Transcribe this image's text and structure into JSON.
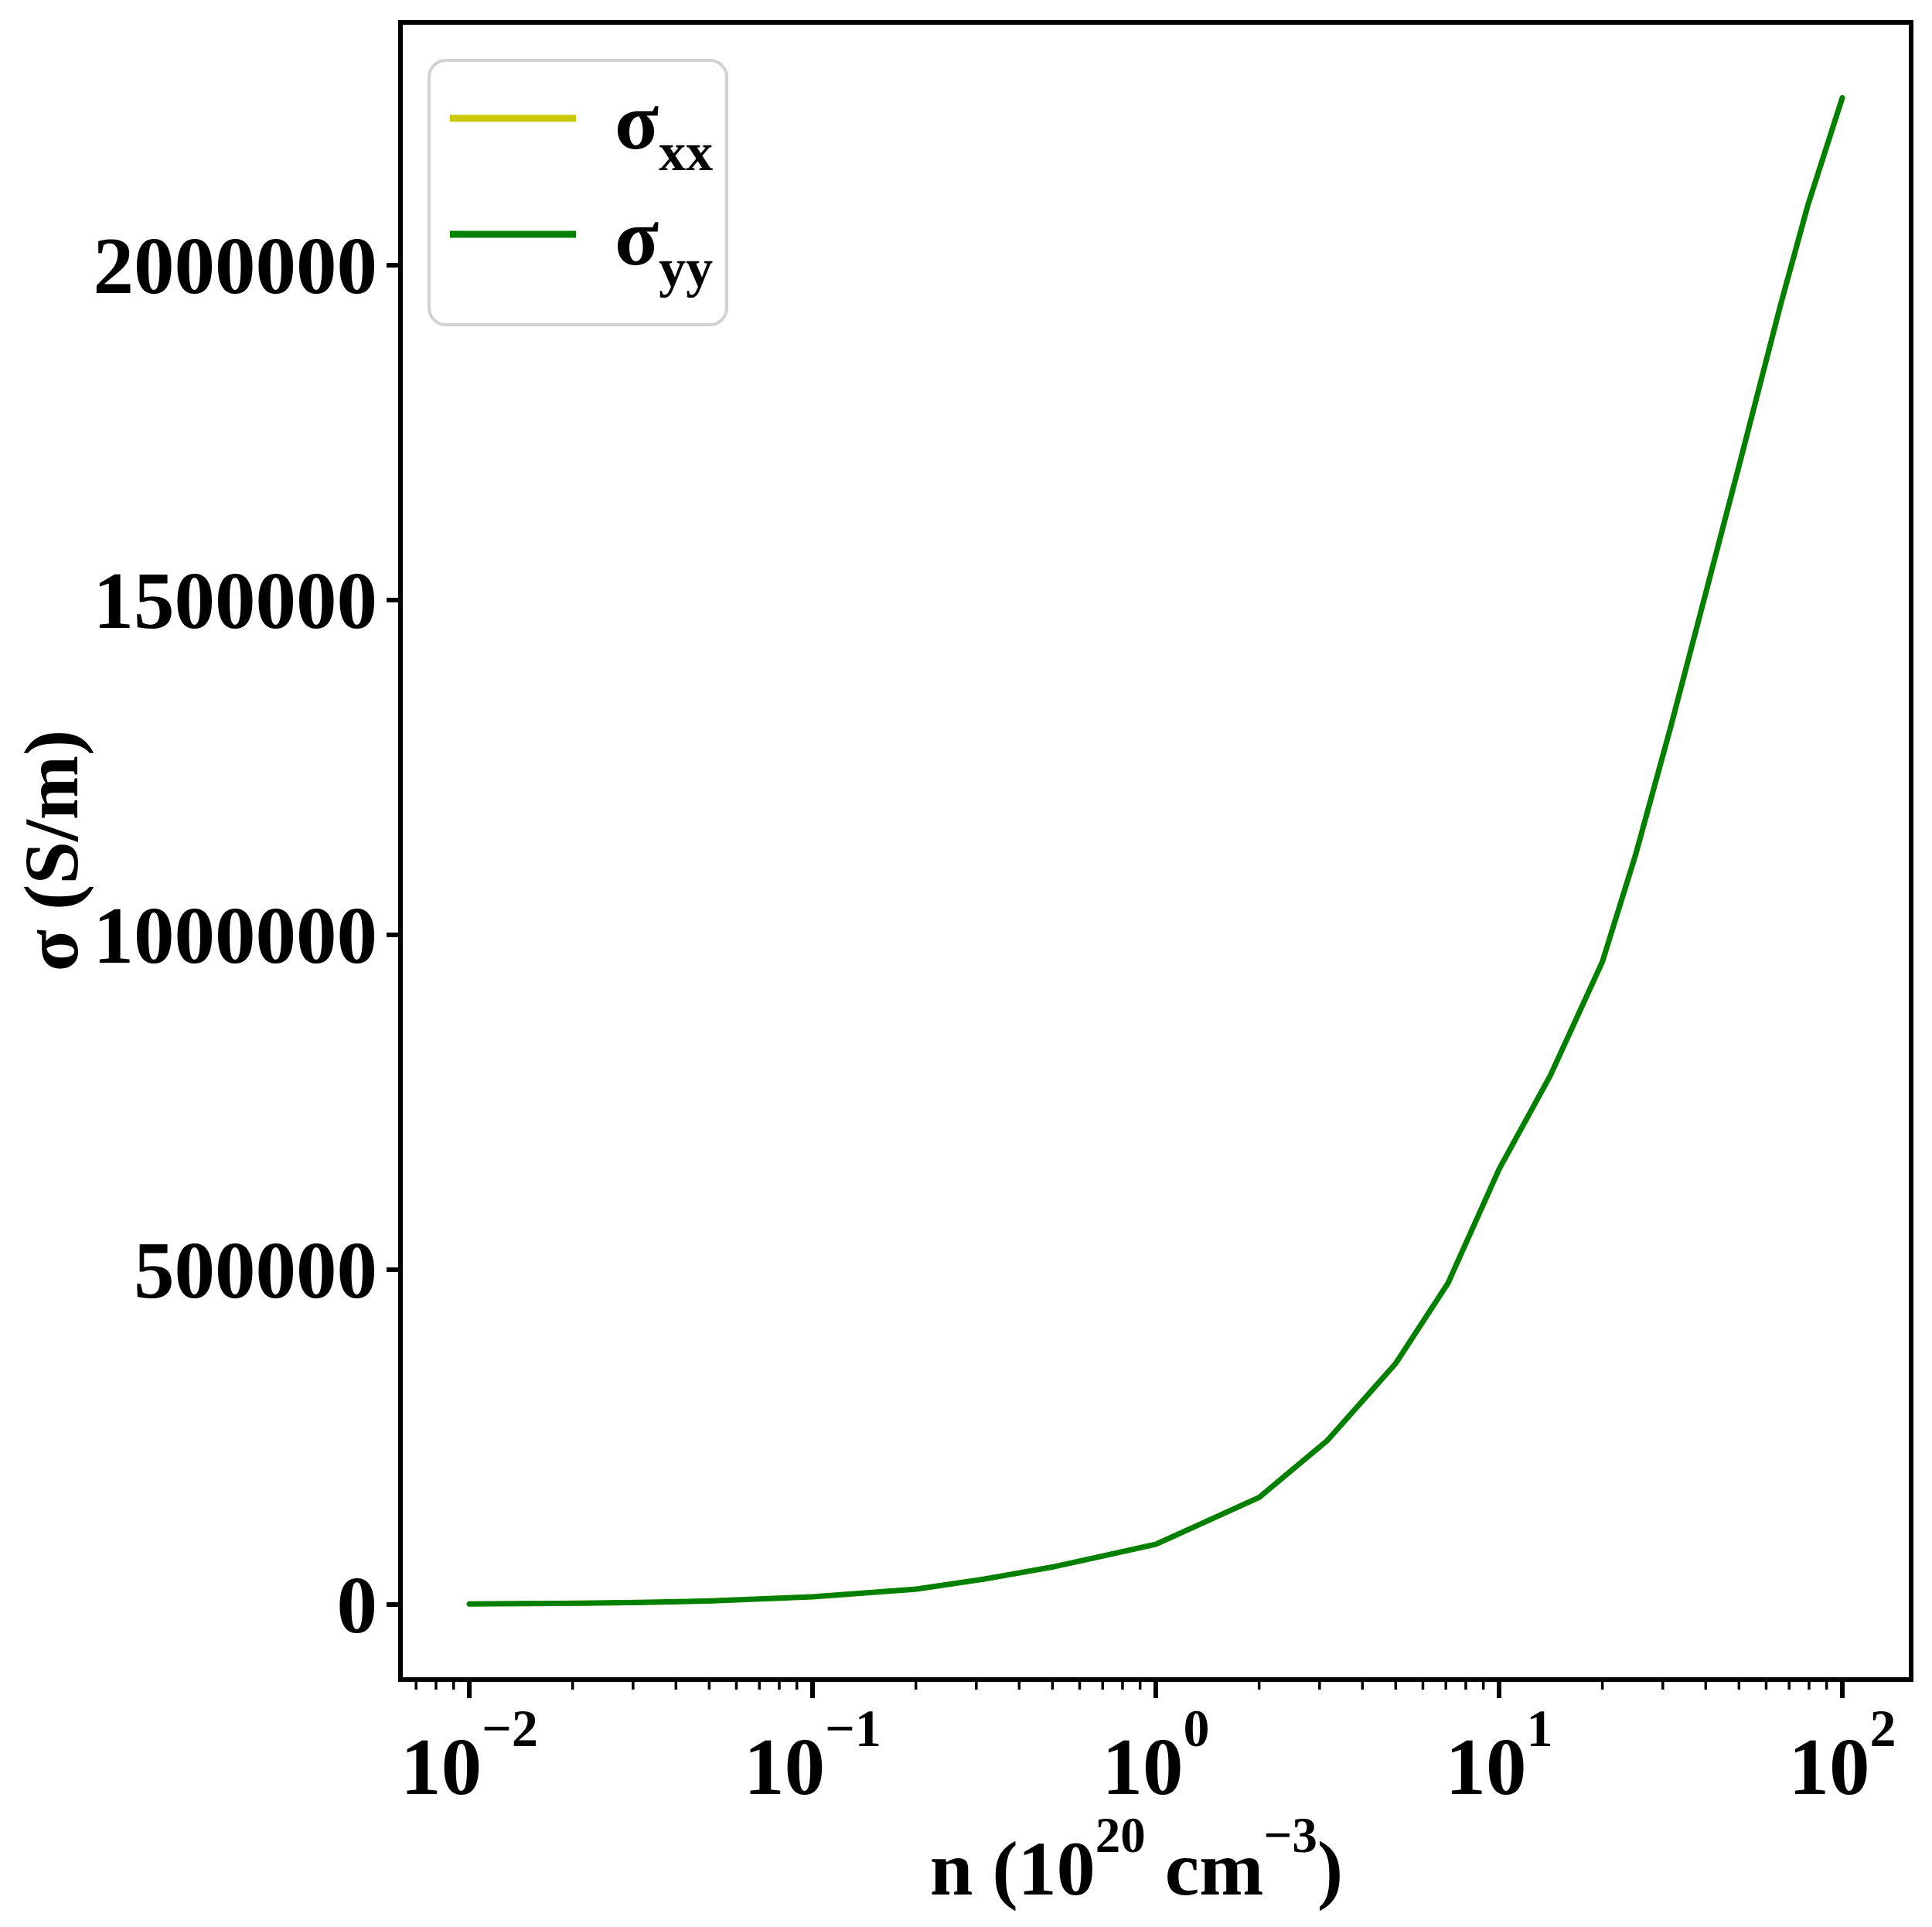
{
  "figure": {
    "background": "#ffffff",
    "ylabel": "σ (S/m)",
    "xlabel_parts": {
      "p1": "n (10",
      "sup1": "20",
      "p2": " cm",
      "sup2": "−3",
      "p3": ")"
    }
  },
  "axes": {
    "x_scale": "log",
    "y_scale": "linear",
    "spine_color": "#000000",
    "xticks": [
      {
        "value": 0.01,
        "base": "10",
        "exp": "−2"
      },
      {
        "value": 0.1,
        "base": "10",
        "exp": "−1"
      },
      {
        "value": 1,
        "base": "10",
        "exp": "0"
      },
      {
        "value": 10,
        "base": "10",
        "exp": "1"
      },
      {
        "value": 100,
        "base": "10",
        "exp": "2"
      }
    ],
    "yticks": [
      {
        "value": 0,
        "label": "0"
      },
      {
        "value": 500000,
        "label": "500000"
      },
      {
        "value": 1000000,
        "label": "1000000"
      },
      {
        "value": 1500000,
        "label": "1500000"
      },
      {
        "value": 2000000,
        "label": "2000000"
      }
    ]
  },
  "legend": {
    "position": "upper left",
    "border_color": "#d2d2d2",
    "entries": [
      {
        "base": "σ",
        "sub": "xx",
        "color": "#c9c900"
      },
      {
        "base": "σ",
        "sub": "yy",
        "color": "#008000"
      }
    ]
  },
  "chart_data": {
    "type": "line",
    "title": "",
    "xlabel": "n (10^20 cm^-3)",
    "ylabel": "σ (S/m)",
    "x_scale": "log",
    "xlim": [
      0.0063,
      158
    ],
    "ylim": [
      -112000,
      2362000
    ],
    "grid": false,
    "legend_position": "upper left",
    "note": "σxx and σyy curves coincide exactly; the green σyy curve is drawn on top of the yellow σxx curve.",
    "series": [
      {
        "name": "σxx",
        "color": "#c9c900",
        "points": [
          [
            0.01,
            900
          ],
          [
            0.02,
            1900
          ],
          [
            0.0316,
            3200
          ],
          [
            0.05,
            5300
          ],
          [
            0.1,
            11500
          ],
          [
            0.2,
            23000
          ],
          [
            0.316,
            38000
          ],
          [
            0.5,
            56000
          ],
          [
            1,
            90000
          ],
          [
            2,
            160000
          ],
          [
            3.16,
            245000
          ],
          [
            5,
            360000
          ],
          [
            7.1,
            480000
          ],
          [
            10,
            650000
          ],
          [
            14.1,
            790000
          ],
          [
            20,
            960000
          ],
          [
            25,
            1120000
          ],
          [
            31.6,
            1310000
          ],
          [
            50,
            1700000
          ],
          [
            66,
            1940000
          ],
          [
            79.4,
            2090000
          ],
          [
            100,
            2250000
          ]
        ]
      },
      {
        "name": "σyy",
        "color": "#008000",
        "points": [
          [
            0.01,
            900
          ],
          [
            0.02,
            1900
          ],
          [
            0.0316,
            3200
          ],
          [
            0.05,
            5300
          ],
          [
            0.1,
            11500
          ],
          [
            0.2,
            23000
          ],
          [
            0.316,
            38000
          ],
          [
            0.5,
            56000
          ],
          [
            1,
            90000
          ],
          [
            2,
            160000
          ],
          [
            3.16,
            245000
          ],
          [
            5,
            360000
          ],
          [
            7.1,
            480000
          ],
          [
            10,
            650000
          ],
          [
            14.1,
            790000
          ],
          [
            20,
            960000
          ],
          [
            25,
            1120000
          ],
          [
            31.6,
            1310000
          ],
          [
            50,
            1700000
          ],
          [
            66,
            1940000
          ],
          [
            79.4,
            2090000
          ],
          [
            100,
            2250000
          ]
        ]
      }
    ]
  }
}
